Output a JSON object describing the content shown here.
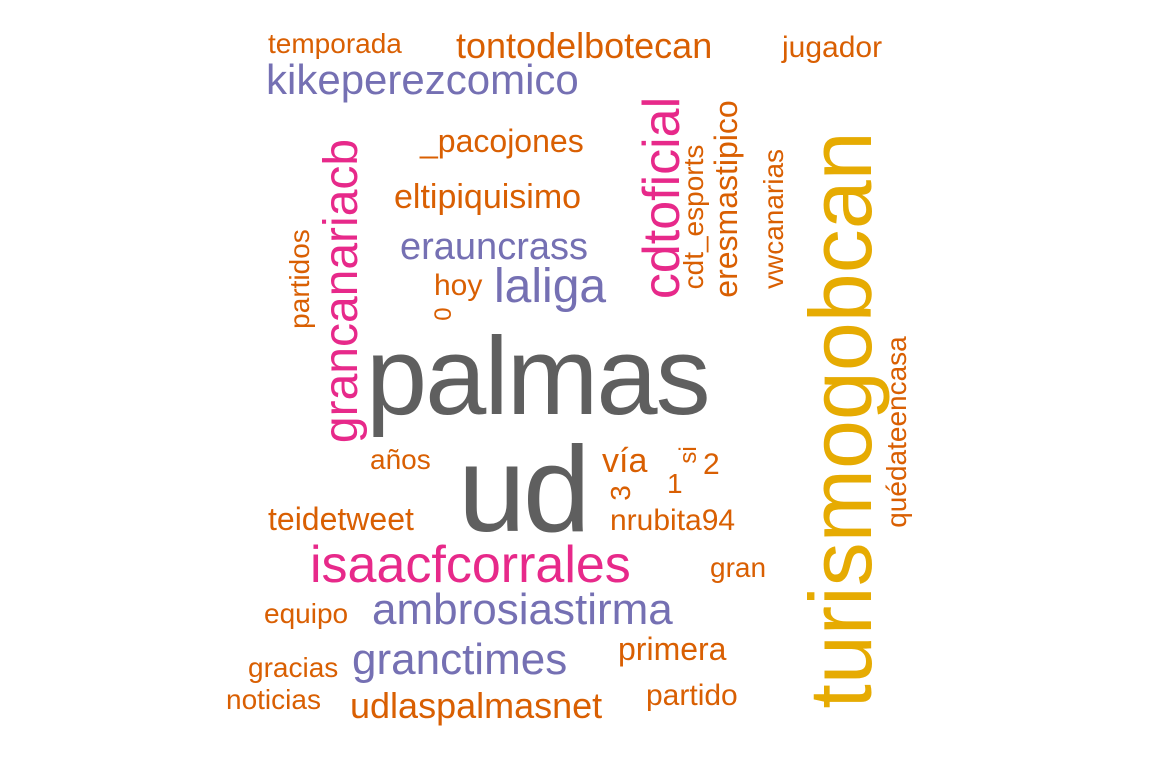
{
  "colors": {
    "gray": "#5f5f5f",
    "gold": "#e6ab02",
    "pink": "#e7298a",
    "purple": "#7570b3",
    "orange": "#d95f02"
  },
  "words": {
    "palmas": "palmas",
    "ud": "ud",
    "turismogobcan": "turismogobcan",
    "grancanariacb": "grancanariacb",
    "cdtoficial": "cdtoficial",
    "isaacfcorrales": "isaacfcorrales",
    "kikeperezcomico": "kikeperezcomico",
    "ambrosiastirma": "ambrosiastirma",
    "granctimes": "granctimes",
    "laliga": "laliga",
    "erauncrass": "erauncrass",
    "tontodelbotecan": "tontodelbotecan",
    "udlaspalmasnet": "udlaspalmasnet",
    "eltipiquisimo": "eltipiquisimo",
    "pacojones": "_pacojones",
    "teidetweet": "teidetweet",
    "nrubita94": "nrubita94",
    "primera": "primera",
    "partido": "partido",
    "temporada": "temporada",
    "jugador": "jugador",
    "eresmastipico": "eresmastipico",
    "cdt_esports": "cdt_esports",
    "vwcanarias": "vwcanarias",
    "quedateencasa": "quédateencasa",
    "partidos": "partidos",
    "hoy": "hoy",
    "zero": "0",
    "anos": "años",
    "via": "vía",
    "si": "si",
    "two": "2",
    "one": "1",
    "three": "3",
    "gran": "gran",
    "equipo": "equipo",
    "gracias": "gracias",
    "noticias": "noticias"
  }
}
